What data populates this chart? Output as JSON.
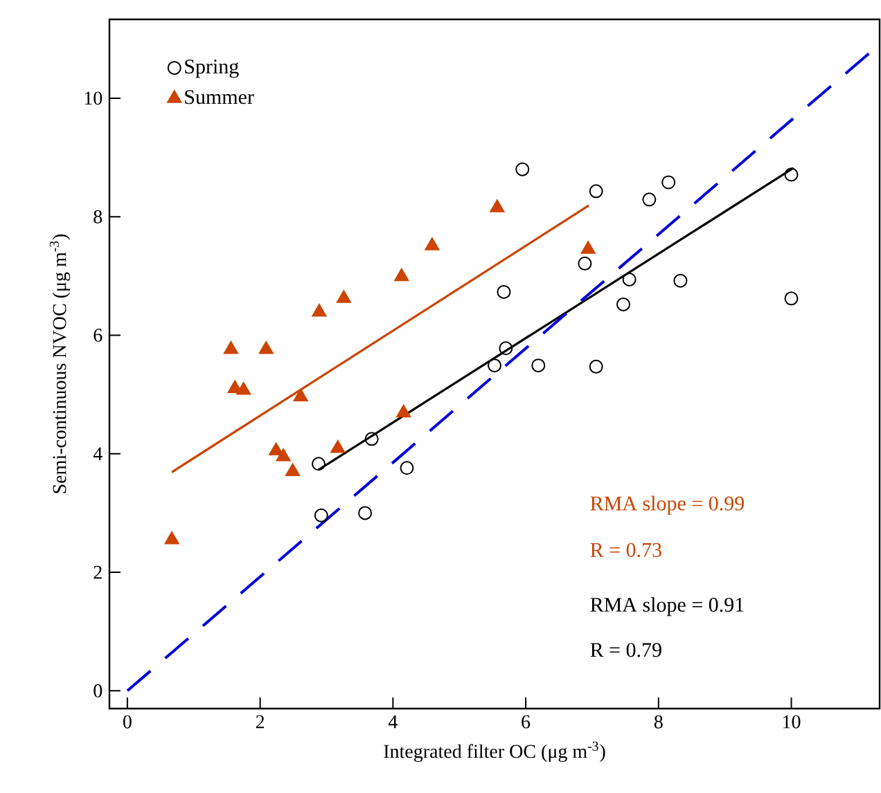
{
  "chart_data": {
    "type": "scatter",
    "xlabel": "Integrated filter OC (μg m$^{-3}$)",
    "ylabel": "Semi-continuous NVOC (μg m$^{-3}$)",
    "xlim": [
      -0.27,
      11.33
    ],
    "ylim": [
      -0.3,
      11.33
    ],
    "xticks": [
      0,
      2,
      4,
      6,
      8,
      10
    ],
    "yticks": [
      0,
      2,
      4,
      6,
      8,
      10
    ],
    "legend": "top left",
    "annotations": [
      "RMA slope = 0.99",
      "R = 0.73",
      "RMA slope = 0.91",
      "R = 0.79"
    ],
    "series": [
      {
        "name": "Spring",
        "marker": "circle",
        "color": "#000000",
        "x": [
          5.95,
          7.06,
          7.86,
          8.15,
          10.0,
          5.67,
          6.89,
          7.56,
          8.33,
          7.47,
          10.0,
          5.7,
          5.53,
          6.19,
          7.06,
          3.68,
          2.88,
          4.21,
          2.92,
          3.58
        ],
        "values": [
          8.8,
          8.43,
          8.29,
          8.58,
          8.71,
          6.73,
          7.21,
          6.94,
          6.92,
          6.52,
          6.62,
          5.78,
          5.49,
          5.49,
          5.47,
          4.25,
          3.83,
          3.76,
          2.96,
          3.0
        ]
      },
      {
        "name": "Summer",
        "marker": "triangle",
        "color": "#cc4400",
        "x": [
          5.57,
          4.59,
          4.13,
          3.26,
          2.89,
          1.56,
          2.09,
          1.62,
          1.75,
          2.61,
          4.16,
          3.17,
          2.24,
          2.35,
          2.49,
          0.67,
          6.94
        ],
        "values": [
          8.15,
          7.51,
          6.99,
          6.62,
          6.39,
          5.76,
          5.76,
          5.1,
          5.07,
          4.96,
          4.69,
          4.09,
          4.05,
          3.95,
          3.7,
          2.55,
          7.45
        ]
      },
      {
        "type": "line",
        "color": "#cc4400",
        "line_style": "solid",
        "x": [
          0.67,
          6.95
        ],
        "values": [
          3.69,
          8.19
        ]
      },
      {
        "type": "line",
        "color": "#000000",
        "line_style": "solid",
        "x": [
          2.88,
          10.03
        ],
        "values": [
          3.73,
          8.82
        ]
      },
      {
        "type": "line",
        "color": "#0000dd",
        "line_style": "dashed",
        "x": [
          0,
          11.33
        ],
        "values": [
          0,
          10.91
        ]
      }
    ]
  }
}
